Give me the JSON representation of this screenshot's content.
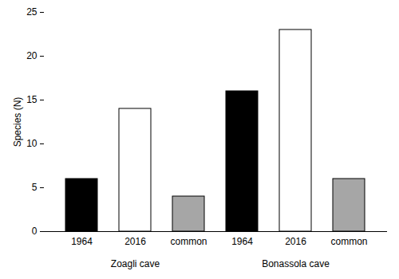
{
  "chart_data": {
    "type": "bar",
    "categories": [
      "Zoagli cave",
      "Bonassola cave"
    ],
    "series": [
      {
        "name": "1964",
        "color": "#000000",
        "values": [
          6,
          16
        ]
      },
      {
        "name": "2016",
        "color": "#ffffff",
        "values": [
          14,
          23
        ]
      },
      {
        "name": "common",
        "color": "#a6a6a6",
        "values": [
          4,
          6
        ]
      }
    ],
    "y_label": "Species (N)",
    "ylim": [
      0,
      25
    ],
    "yticks": [
      0,
      5,
      10,
      15,
      20,
      25
    ],
    "grid": false
  }
}
